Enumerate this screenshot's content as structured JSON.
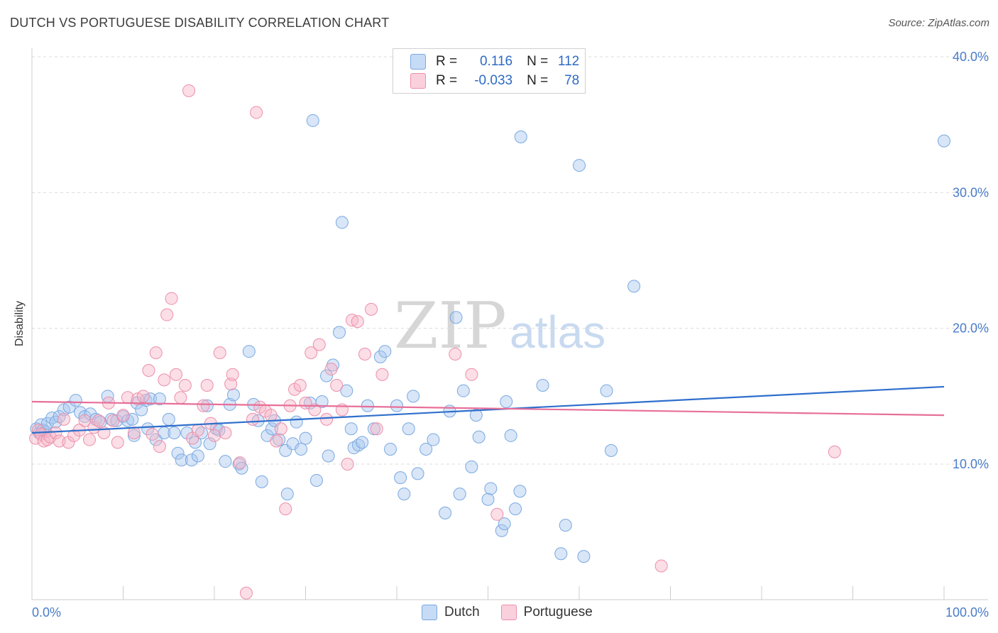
{
  "header": {
    "title": "DUTCH VS PORTUGUESE DISABILITY CORRELATION CHART",
    "source": "Source: ZipAtlas.com"
  },
  "watermark": {
    "zip": "ZIP",
    "atlas": "atlas"
  },
  "legend": {
    "rows": [
      {
        "r_label": "R =",
        "r_value": "0.116",
        "n_label": "N =",
        "n_value": "112",
        "color": "#a8c8f0"
      },
      {
        "r_label": "R =",
        "r_value": "-0.033",
        "n_label": "N =",
        "n_value": "78",
        "color": "#f7b6c8"
      }
    ]
  },
  "chart_data": {
    "type": "scatter",
    "xlabel": "",
    "ylabel": "Disability",
    "xlim": [
      0,
      100
    ],
    "ylim": [
      0,
      42
    ],
    "x_tick_labels": [
      "0.0%",
      "100.0%"
    ],
    "y_ticks": [
      10,
      20,
      30,
      40
    ],
    "y_tick_labels": [
      "10.0%",
      "20.0%",
      "30.0%",
      "40.0%"
    ],
    "grid": true,
    "legend_position": "bottom-center",
    "series": [
      {
        "name": "Dutch",
        "color": "#a8c8f0",
        "stroke": "#7aa8e0",
        "trend": {
          "x": [
            0,
            100
          ],
          "y": [
            12.3,
            15.7
          ],
          "color": "#2f6fcc"
        },
        "points": [
          [
            0.5,
            12.6
          ],
          [
            0.8,
            12.3
          ],
          [
            1.0,
            12.9
          ],
          [
            1.2,
            12.5
          ],
          [
            1.5,
            12.4
          ],
          [
            1.7,
            13.0
          ],
          [
            2.2,
            13.4
          ],
          [
            2.6,
            13.1
          ],
          [
            3.0,
            13.5
          ],
          [
            3.5,
            14.0
          ],
          [
            4.1,
            14.2
          ],
          [
            4.8,
            14.7
          ],
          [
            5.3,
            13.8
          ],
          [
            5.8,
            13.5
          ],
          [
            6.4,
            13.7
          ],
          [
            7.0,
            13.3
          ],
          [
            7.5,
            13.1
          ],
          [
            8.3,
            15.0
          ],
          [
            8.7,
            13.3
          ],
          [
            9.3,
            13.2
          ],
          [
            10.0,
            13.5
          ],
          [
            10.5,
            13.2
          ],
          [
            11.0,
            13.3
          ],
          [
            11.2,
            12.1
          ],
          [
            11.5,
            14.5
          ],
          [
            12.0,
            14.0
          ],
          [
            12.5,
            14.7
          ],
          [
            12.7,
            12.6
          ],
          [
            13.0,
            14.8
          ],
          [
            13.6,
            11.8
          ],
          [
            14.0,
            14.8
          ],
          [
            14.5,
            12.3
          ],
          [
            15.0,
            13.3
          ],
          [
            15.6,
            12.3
          ],
          [
            16.0,
            10.8
          ],
          [
            16.4,
            10.3
          ],
          [
            17.0,
            12.3
          ],
          [
            17.5,
            10.3
          ],
          [
            17.9,
            11.6
          ],
          [
            18.2,
            10.6
          ],
          [
            18.6,
            12.3
          ],
          [
            19.2,
            14.3
          ],
          [
            19.5,
            11.5
          ],
          [
            20.2,
            12.6
          ],
          [
            20.5,
            12.5
          ],
          [
            21.2,
            10.2
          ],
          [
            21.7,
            14.4
          ],
          [
            22.1,
            15.1
          ],
          [
            22.7,
            10.0
          ],
          [
            23.0,
            9.7
          ],
          [
            23.8,
            18.3
          ],
          [
            24.3,
            14.4
          ],
          [
            24.8,
            13.2
          ],
          [
            25.2,
            8.7
          ],
          [
            25.8,
            12.1
          ],
          [
            26.3,
            12.6
          ],
          [
            26.6,
            13.2
          ],
          [
            27.1,
            11.8
          ],
          [
            27.8,
            11.0
          ],
          [
            28.0,
            7.8
          ],
          [
            28.6,
            11.5
          ],
          [
            29.0,
            13.1
          ],
          [
            29.5,
            11.1
          ],
          [
            30.0,
            11.9
          ],
          [
            30.5,
            14.5
          ],
          [
            30.8,
            35.3
          ],
          [
            31.2,
            8.8
          ],
          [
            31.8,
            14.6
          ],
          [
            32.3,
            16.5
          ],
          [
            32.5,
            10.6
          ],
          [
            33.0,
            17.3
          ],
          [
            33.7,
            19.7
          ],
          [
            34.0,
            27.8
          ],
          [
            34.5,
            15.4
          ],
          [
            35.0,
            12.6
          ],
          [
            35.3,
            11.2
          ],
          [
            35.8,
            11.4
          ],
          [
            36.2,
            11.6
          ],
          [
            36.8,
            14.3
          ],
          [
            37.5,
            12.6
          ],
          [
            38.2,
            17.9
          ],
          [
            38.7,
            18.3
          ],
          [
            39.3,
            11.1
          ],
          [
            40.0,
            14.3
          ],
          [
            40.4,
            9.0
          ],
          [
            40.8,
            7.8
          ],
          [
            41.3,
            12.6
          ],
          [
            41.8,
            15.0
          ],
          [
            42.3,
            9.3
          ],
          [
            43.2,
            11.1
          ],
          [
            44.0,
            11.8
          ],
          [
            45.3,
            6.4
          ],
          [
            45.8,
            13.9
          ],
          [
            46.5,
            20.8
          ],
          [
            46.9,
            7.8
          ],
          [
            47.3,
            15.4
          ],
          [
            48.2,
            9.8
          ],
          [
            48.7,
            13.6
          ],
          [
            49.0,
            12.0
          ],
          [
            50.0,
            7.4
          ],
          [
            50.3,
            8.2
          ],
          [
            51.5,
            5.1
          ],
          [
            51.8,
            5.6
          ],
          [
            52.0,
            14.6
          ],
          [
            52.5,
            12.1
          ],
          [
            53.0,
            6.7
          ],
          [
            53.5,
            8.0
          ],
          [
            53.6,
            34.1
          ],
          [
            56.0,
            15.8
          ],
          [
            58.0,
            3.4
          ],
          [
            58.5,
            5.5
          ],
          [
            60.0,
            32.0
          ],
          [
            60.5,
            3.2
          ],
          [
            63.0,
            15.4
          ],
          [
            63.5,
            11.0
          ],
          [
            66.0,
            23.1
          ],
          [
            100.0,
            33.8
          ]
        ]
      },
      {
        "name": "Portuguese",
        "color": "#f7b6c8",
        "stroke": "#ec8fab",
        "trend": {
          "x": [
            0,
            100
          ],
          "y": [
            14.6,
            13.6
          ],
          "color": "#e76f98"
        },
        "points": [
          [
            0.4,
            11.9
          ],
          [
            0.7,
            12.5
          ],
          [
            1.0,
            12.2
          ],
          [
            1.3,
            11.7
          ],
          [
            1.7,
            11.8
          ],
          [
            2.0,
            12.0
          ],
          [
            2.6,
            12.3
          ],
          [
            3.0,
            11.7
          ],
          [
            3.5,
            13.3
          ],
          [
            4.0,
            11.6
          ],
          [
            4.6,
            12.1
          ],
          [
            5.2,
            12.5
          ],
          [
            5.8,
            13.2
          ],
          [
            6.3,
            11.8
          ],
          [
            6.8,
            12.7
          ],
          [
            7.3,
            13.2
          ],
          [
            7.9,
            12.3
          ],
          [
            8.4,
            14.5
          ],
          [
            8.9,
            13.2
          ],
          [
            9.4,
            11.6
          ],
          [
            10.0,
            13.6
          ],
          [
            10.5,
            14.9
          ],
          [
            11.2,
            12.3
          ],
          [
            11.6,
            14.8
          ],
          [
            12.2,
            15.0
          ],
          [
            12.8,
            16.9
          ],
          [
            13.2,
            12.2
          ],
          [
            13.6,
            18.2
          ],
          [
            14.0,
            11.3
          ],
          [
            14.5,
            16.2
          ],
          [
            14.8,
            21.0
          ],
          [
            15.3,
            22.2
          ],
          [
            15.8,
            16.6
          ],
          [
            16.3,
            14.9
          ],
          [
            16.8,
            15.8
          ],
          [
            17.2,
            37.5
          ],
          [
            17.6,
            11.9
          ],
          [
            18.2,
            12.5
          ],
          [
            18.8,
            14.3
          ],
          [
            19.2,
            15.8
          ],
          [
            19.6,
            13.0
          ],
          [
            20.0,
            12.1
          ],
          [
            20.6,
            18.2
          ],
          [
            21.2,
            12.3
          ],
          [
            21.8,
            15.9
          ],
          [
            22.0,
            16.6
          ],
          [
            22.8,
            10.1
          ],
          [
            23.5,
            0.5
          ],
          [
            24.2,
            13.3
          ],
          [
            24.6,
            35.9
          ],
          [
            25.0,
            14.2
          ],
          [
            25.6,
            13.9
          ],
          [
            26.2,
            13.6
          ],
          [
            26.8,
            11.7
          ],
          [
            27.3,
            12.6
          ],
          [
            27.8,
            6.7
          ],
          [
            28.3,
            14.3
          ],
          [
            28.8,
            15.5
          ],
          [
            29.4,
            15.8
          ],
          [
            30.0,
            14.5
          ],
          [
            30.6,
            18.2
          ],
          [
            31.0,
            14.0
          ],
          [
            31.5,
            18.8
          ],
          [
            32.3,
            13.3
          ],
          [
            32.8,
            17.0
          ],
          [
            33.4,
            15.8
          ],
          [
            34.0,
            14.0
          ],
          [
            34.6,
            10.0
          ],
          [
            35.1,
            20.6
          ],
          [
            35.7,
            20.5
          ],
          [
            36.5,
            18.1
          ],
          [
            37.2,
            21.4
          ],
          [
            37.8,
            12.6
          ],
          [
            38.4,
            16.6
          ],
          [
            46.4,
            18.1
          ],
          [
            48.2,
            16.6
          ],
          [
            51.0,
            6.3
          ],
          [
            69.0,
            2.5
          ],
          [
            88.0,
            10.9
          ]
        ]
      }
    ]
  },
  "bottom_legend": {
    "items": [
      "Dutch",
      "Portuguese"
    ]
  }
}
